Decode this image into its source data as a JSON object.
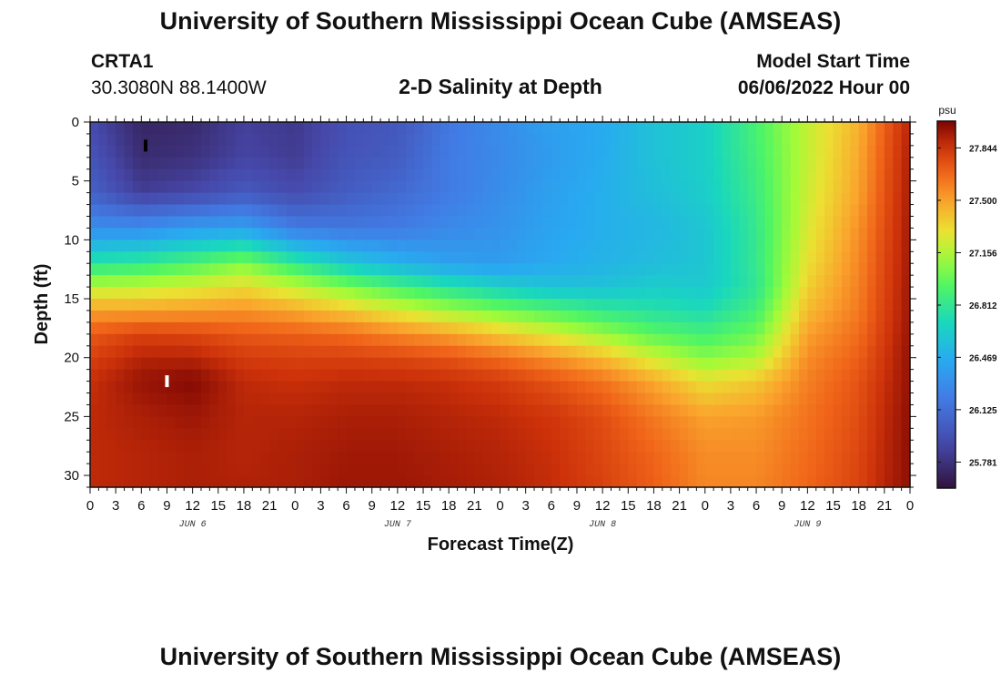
{
  "header": {
    "title": "University of Southern Mississippi Ocean Cube (AMSEAS)",
    "station": "CRTA1",
    "coords": "30.3080N  88.1400W",
    "subtitle": "2-D Salinity at Depth",
    "model_start_label": "Model Start Time",
    "model_start_value": "06/06/2022 Hour 00"
  },
  "footer": {
    "title": "University of Southern Mississippi Ocean Cube (AMSEAS)"
  },
  "chart_data": {
    "type": "heatmap",
    "title": "2-D Salinity at Depth",
    "xlabel": "Forecast Time(Z)",
    "ylabel": "Depth (ft)",
    "x_range_hours": [
      0,
      96
    ],
    "ylim": [
      0,
      31
    ],
    "y_inverted": true,
    "x_tick_labels": [
      "0",
      "3",
      "6",
      "9",
      "12",
      "15",
      "18",
      "21",
      "0",
      "3",
      "6",
      "9",
      "12",
      "15",
      "18",
      "21",
      "0",
      "3",
      "6",
      "9",
      "12",
      "15",
      "18",
      "21",
      "0",
      "3",
      "6",
      "9",
      "12",
      "15",
      "18",
      "21",
      "0"
    ],
    "y_tick_labels": [
      "0",
      "5",
      "10",
      "15",
      "20",
      "25",
      "30"
    ],
    "y_tick_values": [
      0,
      5,
      10,
      15,
      20,
      25,
      30
    ],
    "day_labels": [
      "JUN 6",
      "JUN 7",
      "JUN 8",
      "JUN 9"
    ],
    "colorbar": {
      "unit": "psu",
      "min": 25.61,
      "max": 28.02,
      "tick_labels": [
        "27.844",
        "27.500",
        "27.156",
        "26.812",
        "26.469",
        "26.125",
        "25.781"
      ],
      "tick_values": [
        27.844,
        27.5,
        27.156,
        26.812,
        26.469,
        26.125,
        25.781
      ]
    },
    "grid": {
      "hours": [
        0,
        6,
        12,
        18,
        24,
        30,
        36,
        42,
        48,
        54,
        60,
        66,
        72,
        78,
        84,
        90,
        93,
        96
      ],
      "depths": [
        0,
        3,
        6,
        9,
        12,
        14,
        16,
        18,
        20,
        22,
        25,
        28,
        31
      ],
      "salinity": [
        [
          25.92,
          25.72,
          25.74,
          25.86,
          25.82,
          25.95,
          25.99,
          26.18,
          26.3,
          26.4,
          26.45,
          26.58,
          26.65,
          26.9,
          27.2,
          27.45,
          27.7,
          27.9
        ],
        [
          25.98,
          25.75,
          25.78,
          25.88,
          25.84,
          25.97,
          26.02,
          26.2,
          26.28,
          26.38,
          26.46,
          26.58,
          26.65,
          26.88,
          27.2,
          27.48,
          27.72,
          27.92
        ],
        [
          26.05,
          25.85,
          25.9,
          26.0,
          25.92,
          26.02,
          26.1,
          26.2,
          26.3,
          26.4,
          26.48,
          26.56,
          26.64,
          26.85,
          27.22,
          27.5,
          27.74,
          27.93
        ],
        [
          26.3,
          26.3,
          26.38,
          26.4,
          26.2,
          26.18,
          26.2,
          26.28,
          26.33,
          26.42,
          26.48,
          26.52,
          26.6,
          26.82,
          27.25,
          27.55,
          27.76,
          27.94
        ],
        [
          26.78,
          26.82,
          26.92,
          27.05,
          26.82,
          26.62,
          26.5,
          26.4,
          26.38,
          26.45,
          26.5,
          26.55,
          26.6,
          26.82,
          27.3,
          27.58,
          27.78,
          27.94
        ],
        [
          27.18,
          27.2,
          27.25,
          27.32,
          27.2,
          27.05,
          26.9,
          26.78,
          26.66,
          26.58,
          26.58,
          26.64,
          26.62,
          26.8,
          27.35,
          27.6,
          27.79,
          27.95
        ],
        [
          27.5,
          27.5,
          27.52,
          27.55,
          27.48,
          27.38,
          27.25,
          27.12,
          27.02,
          26.92,
          26.82,
          26.76,
          26.72,
          26.88,
          27.42,
          27.62,
          27.8,
          27.95
        ],
        [
          27.72,
          27.8,
          27.78,
          27.72,
          27.7,
          27.66,
          27.58,
          27.5,
          27.38,
          27.25,
          27.1,
          26.95,
          26.88,
          27.0,
          27.5,
          27.66,
          27.82,
          27.96
        ],
        [
          27.8,
          27.9,
          27.9,
          27.82,
          27.8,
          27.8,
          27.78,
          27.74,
          27.66,
          27.55,
          27.42,
          27.22,
          27.06,
          27.15,
          27.56,
          27.7,
          27.84,
          27.97
        ],
        [
          27.86,
          27.96,
          28.0,
          27.88,
          27.86,
          27.88,
          27.88,
          27.86,
          27.82,
          27.74,
          27.64,
          27.48,
          27.3,
          27.38,
          27.6,
          27.74,
          27.86,
          27.97
        ],
        [
          27.88,
          27.92,
          27.95,
          27.9,
          27.9,
          27.92,
          27.92,
          27.9,
          27.88,
          27.84,
          27.76,
          27.62,
          27.5,
          27.52,
          27.64,
          27.76,
          27.88,
          27.98
        ],
        [
          27.88,
          27.9,
          27.92,
          27.9,
          27.92,
          27.94,
          27.94,
          27.92,
          27.9,
          27.86,
          27.78,
          27.68,
          27.56,
          27.56,
          27.66,
          27.78,
          27.89,
          27.98
        ],
        [
          27.88,
          27.9,
          27.92,
          27.91,
          27.92,
          27.95,
          27.95,
          27.93,
          27.91,
          27.87,
          27.8,
          27.7,
          27.58,
          27.58,
          27.68,
          27.79,
          27.9,
          27.98
        ]
      ]
    },
    "markers": [
      {
        "hour": 6.5,
        "depth": 2.0,
        "color": "#000000"
      },
      {
        "hour": 9.0,
        "depth": 22.0,
        "color": "#ffffff"
      }
    ]
  }
}
